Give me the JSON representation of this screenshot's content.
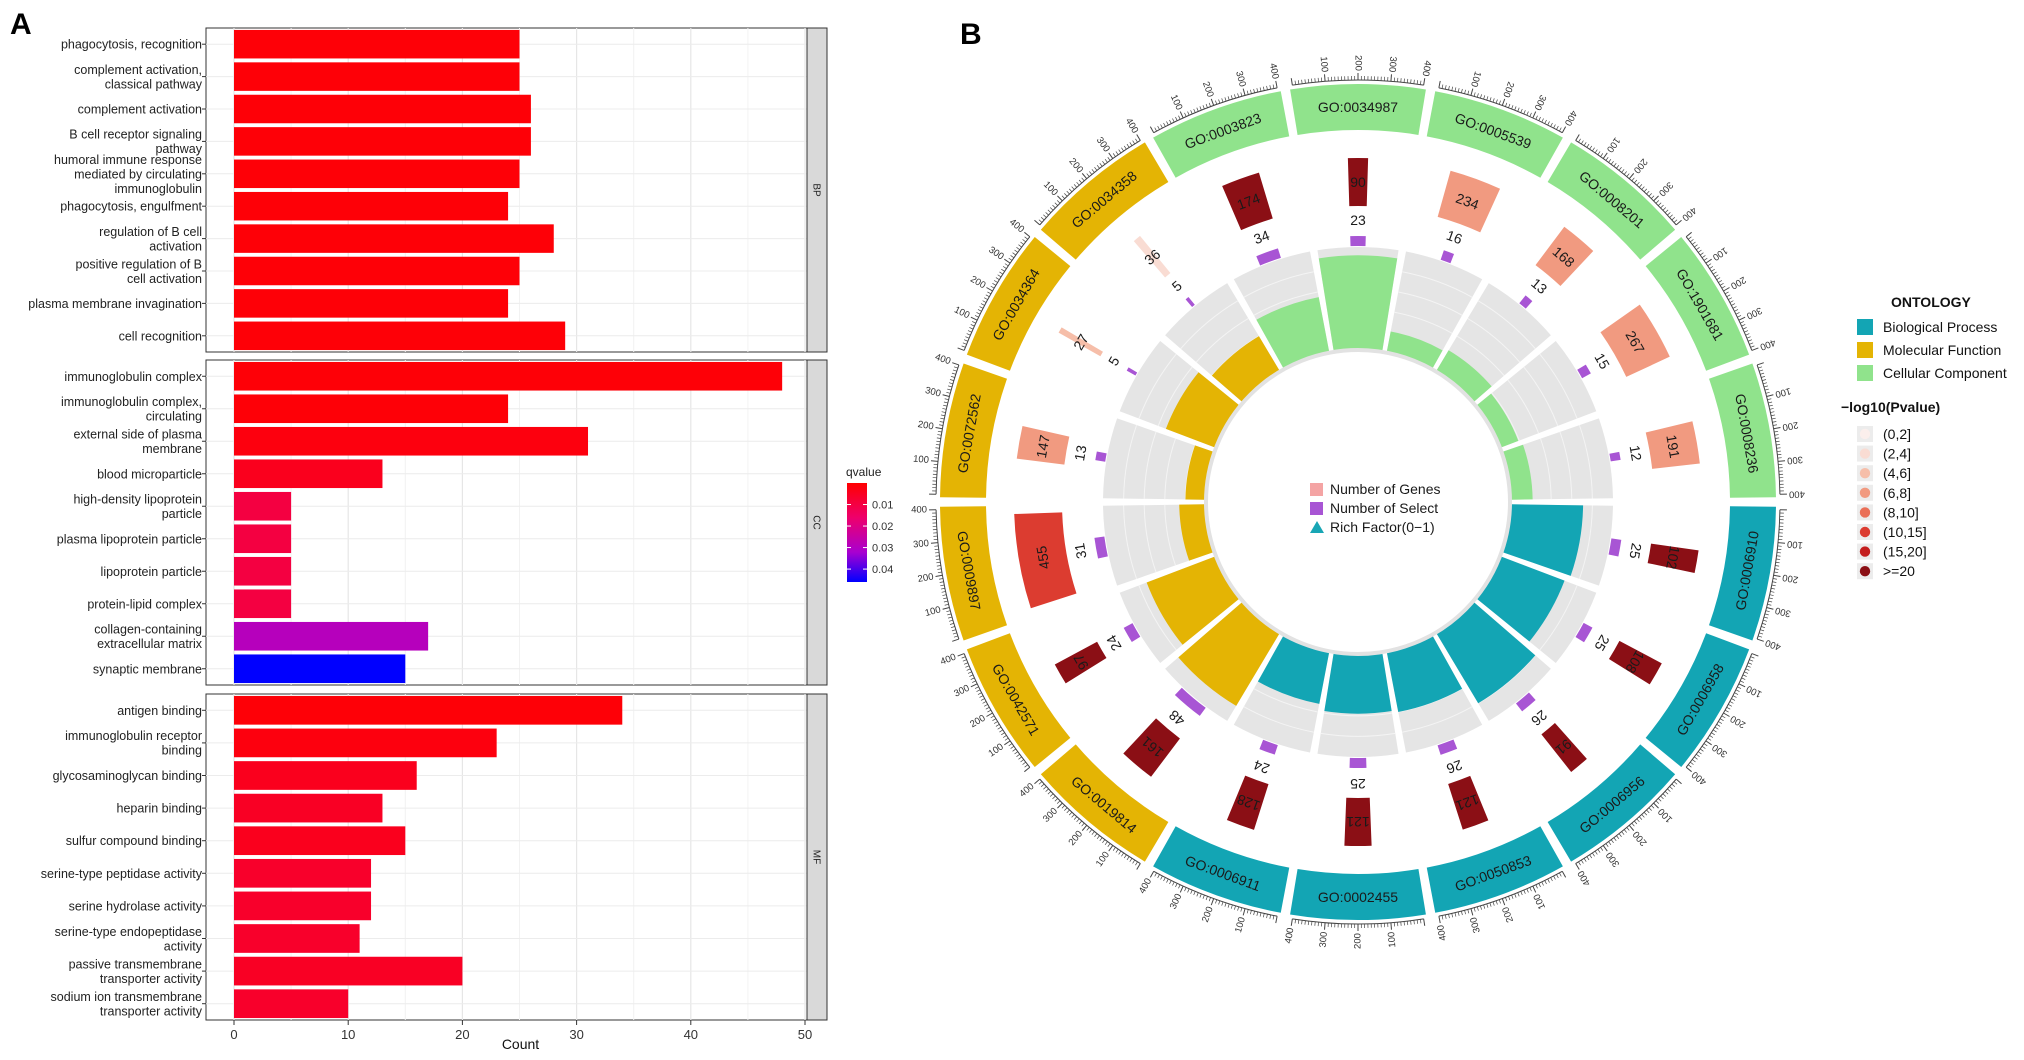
{
  "panels": {
    "a_label": "A",
    "b_label": "B"
  },
  "chart_data": [
    {
      "type": "bar",
      "orientation": "horizontal",
      "panel": "A",
      "xlabel": "Count",
      "ylabel": "",
      "xlim": [
        0,
        50
      ],
      "x_ticks": [
        0,
        10,
        20,
        30,
        40,
        50
      ],
      "grid": true,
      "legend": {
        "title": "qvalue",
        "placement": "right",
        "colorbar_ticks": [
          "0.01",
          "0.02",
          "0.03",
          "0.04"
        ],
        "colormap": {
          "low": "#ff0000",
          "high": "#0000ff"
        }
      },
      "facets": [
        {
          "name": "BP",
          "categories": [
            [
              "phagocytosis, recognition"
            ],
            [
              "complement activation,",
              "classical pathway"
            ],
            [
              "complement activation"
            ],
            [
              "B cell receptor signaling",
              "pathway"
            ],
            [
              "humoral immune response",
              "mediated by circulating",
              "immunoglobulin"
            ],
            [
              "phagocytosis, engulfment"
            ],
            [
              "regulation of B cell",
              "activation"
            ],
            [
              "positive regulation of B",
              "cell activation"
            ],
            [
              "plasma membrane invagination"
            ],
            [
              "cell recognition"
            ]
          ],
          "values": [
            25,
            25,
            26,
            26,
            25,
            24,
            28,
            25,
            24,
            29
          ],
          "qvalues": [
            0.001,
            0.001,
            0.001,
            0.001,
            0.001,
            0.001,
            0.001,
            0.001,
            0.001,
            0.001
          ]
        },
        {
          "name": "CC",
          "categories": [
            [
              "immunoglobulin complex"
            ],
            [
              "immunoglobulin complex,",
              "circulating"
            ],
            [
              "external side of plasma",
              "membrane"
            ],
            [
              "blood microparticle"
            ],
            [
              "high-density lipoprotein",
              "particle"
            ],
            [
              "plasma lipoprotein particle"
            ],
            [
              "lipoprotein particle"
            ],
            [
              "protein-lipid complex"
            ],
            [
              "collagen-containing",
              "extracellular matrix"
            ],
            [
              "synaptic membrane"
            ]
          ],
          "values": [
            48,
            24,
            31,
            13,
            5,
            5,
            5,
            5,
            17,
            15
          ],
          "qvalues": [
            0.001,
            0.001,
            0.002,
            0.004,
            0.009,
            0.009,
            0.009,
            0.009,
            0.028,
            0.046
          ]
        },
        {
          "name": "MF",
          "categories": [
            [
              "antigen binding"
            ],
            [
              "immunoglobulin receptor",
              "binding"
            ],
            [
              "glycosaminoglycan binding"
            ],
            [
              "heparin binding"
            ],
            [
              "sulfur compound binding"
            ],
            [
              "serine-type peptidase activity"
            ],
            [
              "serine hydrolase activity"
            ],
            [
              "serine-type endopeptidase",
              "activity"
            ],
            [
              "passive transmembrane",
              "transporter activity"
            ],
            [
              "sodium ion transmembrane",
              "transporter activity"
            ]
          ],
          "values": [
            34,
            23,
            16,
            13,
            15,
            12,
            12,
            11,
            20,
            10
          ],
          "qvalues": [
            0.001,
            0.002,
            0.004,
            0.005,
            0.004,
            0.006,
            0.006,
            0.006,
            0.005,
            0.006
          ]
        }
      ]
    },
    {
      "type": "circular",
      "panel": "B",
      "ring_tick_labels": [
        "100",
        "200",
        "300",
        "400"
      ],
      "legend_items": [
        {
          "label": "Number of Genes",
          "color": "#f4a4a4",
          "shape": "square"
        },
        {
          "label": "Number of Select",
          "color": "#a855d4",
          "shape": "square"
        },
        {
          "label": "Rich Factor(0−1)",
          "color": "#18a6b5",
          "shape": "triangle"
        }
      ],
      "ontology_legend": {
        "title": "ONTOLOGY",
        "items": [
          {
            "label": "Biological Process",
            "color": "#13a5b4"
          },
          {
            "label": "Molecular Function",
            "color": "#e4b404"
          },
          {
            "label": "Cellular Component",
            "color": "#90e38c"
          }
        ]
      },
      "pvalue_legend": {
        "title": "−log10(Pvalue)",
        "items": [
          {
            "label": "(0,2]",
            "color": "#fbefec"
          },
          {
            "label": "(2,4]",
            "color": "#f9dcd3"
          },
          {
            "label": "(4,6]",
            "color": "#f6bea9"
          },
          {
            "label": "(6,8]",
            "color": "#f19a80"
          },
          {
            "label": "(8,10]",
            "color": "#ea6f57"
          },
          {
            "label": "(10,15]",
            "color": "#dc3c30"
          },
          {
            "label": "(15,20]",
            "color": "#c41e1e"
          },
          {
            "label": ">=20",
            "color": "#8b0f15"
          }
        ]
      },
      "terms": [
        {
          "id": "GO:0034987",
          "ontology": "CC",
          "genes": 90,
          "select": 23,
          "rich": 0.92,
          "pcat": 7
        },
        {
          "id": "GO:0005539",
          "ontology": "CC",
          "genes": 234,
          "select": 16,
          "rich": 0.21,
          "pcat": 3
        },
        {
          "id": "GO:0008201",
          "ontology": "CC",
          "genes": 168,
          "select": 13,
          "rich": 0.24,
          "pcat": 3
        },
        {
          "id": "GO:1901681",
          "ontology": "CC",
          "genes": 267,
          "select": 15,
          "rich": 0.19,
          "pcat": 3
        },
        {
          "id": "GO:0008236",
          "ontology": "CC",
          "genes": 191,
          "select": 12,
          "rich": 0.22,
          "pcat": 3
        },
        {
          "id": "GO:0006910",
          "ontology": "BP",
          "genes": 102,
          "select": 25,
          "rich": 0.71,
          "pcat": 7
        },
        {
          "id": "GO:0006958",
          "ontology": "BP",
          "genes": 108,
          "select": 25,
          "rich": 0.67,
          "pcat": 7
        },
        {
          "id": "GO:0006956",
          "ontology": "BP",
          "genes": 91,
          "select": 26,
          "rich": 0.8,
          "pcat": 7
        },
        {
          "id": "GO:0050853",
          "ontology": "BP",
          "genes": 121,
          "select": 26,
          "rich": 0.6,
          "pcat": 7
        },
        {
          "id": "GO:0002455",
          "ontology": "BP",
          "genes": 121,
          "select": 25,
          "rich": 0.58,
          "pcat": 7
        },
        {
          "id": "GO:0006911",
          "ontology": "BP",
          "genes": 128,
          "select": 24,
          "rich": 0.52,
          "pcat": 7
        },
        {
          "id": "GO:0019814",
          "ontology": "MF",
          "genes": 161,
          "select": 48,
          "rich": 0.83,
          "pcat": 7
        },
        {
          "id": "GO:0042571",
          "ontology": "MF",
          "genes": 97,
          "select": 24,
          "rich": 0.72,
          "pcat": 7
        },
        {
          "id": "GO:0009897",
          "ontology": "MF",
          "genes": 455,
          "select": 31,
          "rich": 0.26,
          "pcat": 5
        },
        {
          "id": "GO:0072562",
          "ontology": "MF",
          "genes": 147,
          "select": 13,
          "rich": 0.2,
          "pcat": 3
        },
        {
          "id": "GO:0034364",
          "ontology": "MF",
          "genes": 27,
          "select": 5,
          "rich": 0.52,
          "pcat": 2
        },
        {
          "id": "GO:0034358",
          "ontology": "MF",
          "genes": 36,
          "select": 5,
          "rich": 0.4,
          "pcat": 1
        },
        {
          "id": "GO:0003823",
          "ontology": "CC",
          "genes": 174,
          "select": 34,
          "rich": 0.55,
          "pcat": 7
        }
      ]
    }
  ]
}
